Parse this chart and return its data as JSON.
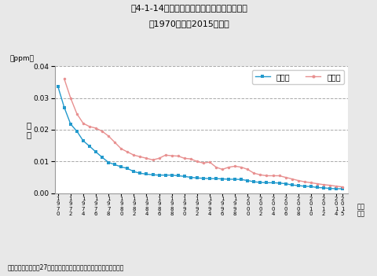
{
  "title_line1": "図4-1-14　二酸化硫黄濃度の年平均値の推移",
  "title_line2": "（1970年度～2015年度）",
  "ylabel_rotated": "濃\n度",
  "ylabel_top": "（ppm）",
  "xlabel_bottom": "（年\n度）",
  "source": "資料：環境省「平成27年度大気汚染状況について（報道発表資料）」",
  "years": [
    1970,
    1971,
    1972,
    1973,
    1974,
    1975,
    1976,
    1977,
    1978,
    1979,
    1980,
    1981,
    1982,
    1983,
    1984,
    1985,
    1986,
    1987,
    1988,
    1989,
    1990,
    1991,
    1992,
    1993,
    1994,
    1995,
    1996,
    1997,
    1998,
    1999,
    2000,
    2001,
    2002,
    2003,
    2004,
    2005,
    2006,
    2007,
    2008,
    2009,
    2010,
    2011,
    2012,
    2013,
    2014,
    2015
  ],
  "ippan": [
    0.0336,
    0.027,
    0.0218,
    0.0195,
    0.0165,
    0.0148,
    0.013,
    0.0113,
    0.0097,
    0.009,
    0.0083,
    0.0078,
    0.0068,
    0.0063,
    0.006,
    0.0058,
    0.0057,
    0.0057,
    0.0057,
    0.0055,
    0.0053,
    0.005,
    0.0048,
    0.0047,
    0.0046,
    0.0046,
    0.0045,
    0.0044,
    0.0044,
    0.0043,
    0.004,
    0.0036,
    0.0034,
    0.0033,
    0.0033,
    0.0032,
    0.003,
    0.0026,
    0.0024,
    0.0022,
    0.0021,
    0.0018,
    0.0017,
    0.0015,
    0.0014,
    0.0014
  ],
  "jihai": [
    null,
    0.036,
    0.03,
    0.025,
    0.022,
    0.021,
    0.0205,
    0.0195,
    0.018,
    0.016,
    0.014,
    0.013,
    0.012,
    0.0115,
    0.011,
    0.0105,
    0.011,
    0.012,
    0.0118,
    0.0117,
    0.011,
    0.0108,
    0.01,
    0.0095,
    0.0098,
    0.0082,
    0.0075,
    0.0082,
    0.0085,
    0.0082,
    0.0075,
    0.0063,
    0.0058,
    0.0055,
    0.0055,
    0.0055,
    0.005,
    0.0045,
    0.004,
    0.0036,
    0.0033,
    0.003,
    0.0027,
    0.0025,
    0.0022,
    0.002
  ],
  "ippan_color": "#2299CC",
  "jihai_color": "#E89090",
  "bg_color": "#e8e8e8",
  "plot_bg": "#ffffff",
  "ylim": [
    0,
    0.04
  ],
  "yticks": [
    0,
    0.01,
    0.02,
    0.03,
    0.04
  ],
  "xtick_years": [
    1970,
    1972,
    1974,
    1976,
    1978,
    1980,
    1982,
    1984,
    1986,
    1988,
    1990,
    1992,
    1994,
    1996,
    1998,
    2000,
    2002,
    2004,
    2006,
    2008,
    2010,
    2012,
    2014,
    2015
  ],
  "legend_ippan": "一般局",
  "legend_jihai": "自排局"
}
